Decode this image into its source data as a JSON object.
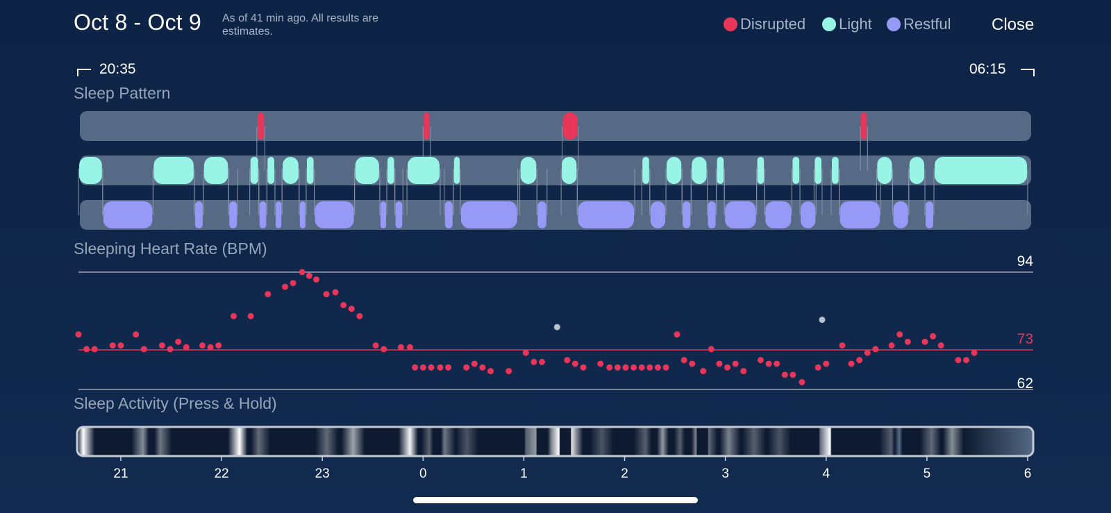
{
  "header": {
    "date_range": "Oct 8 - Oct 9",
    "as_of": "As of 41 min ago. All results are estimates.",
    "close_label": "Close"
  },
  "legend": [
    {
      "label": "Disrupted",
      "color": "#e8365a"
    },
    {
      "label": "Light",
      "color": "#98f5e6"
    },
    {
      "label": "Restful",
      "color": "#9699f5"
    }
  ],
  "time_range": {
    "start": "20:35",
    "end": "06:15"
  },
  "sections": {
    "sleep_pattern": "Sleep Pattern",
    "heart_rate": "Sleeping Heart Rate (BPM)",
    "activity": "Sleep Activity (Press & Hold)"
  },
  "heart_rate": {
    "max": "94",
    "avg": "73",
    "min": "62"
  },
  "colors": {
    "background": "#10264a",
    "track": "#566a85",
    "disrupted": "#e8365a",
    "light": "#98f5e6",
    "restful": "#9699f5",
    "heart_point": "#e8365a",
    "outlier_point": "#b9c0c9",
    "avg_line": "#e8365a",
    "ref_line": "#9aa4b4"
  },
  "icons": {
    "range_start": "bracket-start-icon",
    "range_end": "bracket-end-icon"
  },
  "chart_data": {
    "type": "scatter",
    "title": "Sleeping Heart Rate (BPM)",
    "xlabel": "",
    "ylabel": "",
    "x_ticks": [
      "21",
      "22",
      "23",
      "0",
      "1",
      "2",
      "3",
      "4",
      "5",
      "6"
    ],
    "x_range": [
      20.58,
      30.0
    ],
    "ylim": [
      62,
      94
    ],
    "reference_lines": [
      {
        "label": "94",
        "value": 94
      },
      {
        "label": "73",
        "value": 73
      },
      {
        "label": "62",
        "value": 62
      }
    ],
    "series": [
      {
        "points": [
          [
            20.58,
            77
          ],
          [
            20.66,
            73
          ],
          [
            20.74,
            73
          ],
          [
            20.92,
            74
          ],
          [
            21.0,
            74
          ],
          [
            21.15,
            77
          ],
          [
            21.23,
            73
          ],
          [
            21.41,
            74
          ],
          [
            21.49,
            73
          ],
          [
            21.57,
            75
          ],
          [
            21.65,
            73.5
          ],
          [
            21.81,
            74
          ],
          [
            21.89,
            73.5
          ],
          [
            21.97,
            74
          ],
          [
            22.12,
            82
          ],
          [
            22.29,
            82
          ],
          [
            22.46,
            88
          ],
          [
            22.63,
            90
          ],
          [
            22.71,
            91
          ],
          [
            22.8,
            94
          ],
          [
            22.87,
            93
          ],
          [
            22.94,
            92
          ],
          [
            23.04,
            88
          ],
          [
            23.13,
            88.5
          ],
          [
            23.21,
            85
          ],
          [
            23.29,
            84
          ],
          [
            23.37,
            82
          ],
          [
            23.53,
            74
          ],
          [
            23.61,
            73
          ],
          [
            23.78,
            73.5
          ],
          [
            23.87,
            73.5
          ],
          [
            23.92,
            68
          ],
          [
            24.0,
            68
          ],
          [
            24.08,
            68
          ],
          [
            24.17,
            68
          ],
          [
            24.25,
            68
          ],
          [
            24.43,
            68
          ],
          [
            24.51,
            69
          ],
          [
            24.59,
            68
          ],
          [
            24.67,
            67
          ],
          [
            24.85,
            67
          ],
          [
            25.02,
            72
          ],
          [
            25.1,
            69.5
          ],
          [
            25.18,
            69.5
          ],
          [
            25.43,
            70
          ],
          [
            25.51,
            69
          ],
          [
            25.59,
            68
          ],
          [
            25.76,
            69
          ],
          [
            25.85,
            68
          ],
          [
            25.93,
            68
          ],
          [
            26.01,
            68
          ],
          [
            26.09,
            68
          ],
          [
            26.17,
            68
          ],
          [
            26.25,
            68
          ],
          [
            26.33,
            68
          ],
          [
            26.41,
            68
          ],
          [
            26.52,
            77
          ],
          [
            26.59,
            70
          ],
          [
            26.67,
            69
          ],
          [
            26.78,
            67
          ],
          [
            26.86,
            73
          ],
          [
            26.94,
            69
          ],
          [
            27.02,
            68
          ],
          [
            27.1,
            69
          ],
          [
            27.18,
            67
          ],
          [
            27.35,
            70
          ],
          [
            27.43,
            69
          ],
          [
            27.51,
            69
          ],
          [
            27.59,
            66
          ],
          [
            27.67,
            66
          ],
          [
            27.76,
            64
          ],
          [
            27.92,
            68
          ],
          [
            28.0,
            69
          ],
          [
            28.16,
            74
          ],
          [
            28.25,
            69
          ],
          [
            28.33,
            70
          ],
          [
            28.41,
            72
          ],
          [
            28.49,
            73
          ],
          [
            28.65,
            74
          ],
          [
            28.73,
            77
          ],
          [
            28.81,
            75
          ],
          [
            28.98,
            75
          ],
          [
            29.06,
            76.5
          ],
          [
            29.14,
            74
          ],
          [
            29.31,
            70
          ],
          [
            29.39,
            70
          ],
          [
            29.47,
            72
          ]
        ]
      },
      {
        "points": [
          [
            25.33,
            79
          ],
          [
            27.96,
            81
          ]
        ]
      }
    ]
  },
  "sleep_pattern": {
    "x_range": [
      20.58,
      30.0
    ],
    "disrupted": [
      [
        22.35,
        22.43
      ],
      [
        24.0,
        24.07
      ],
      [
        25.38,
        25.54
      ],
      [
        28.34,
        28.41
      ]
    ],
    "light": [
      [
        20.58,
        20.82
      ],
      [
        21.32,
        21.73
      ],
      [
        21.82,
        22.07
      ],
      [
        22.28,
        22.37
      ],
      [
        22.45,
        22.53
      ],
      [
        22.6,
        22.77
      ],
      [
        22.84,
        22.92
      ],
      [
        23.32,
        23.57
      ],
      [
        23.64,
        23.72
      ],
      [
        23.84,
        24.17
      ],
      [
        24.3,
        24.37
      ],
      [
        24.96,
        25.13
      ],
      [
        25.37,
        25.53
      ],
      [
        26.17,
        26.25
      ],
      [
        26.41,
        26.57
      ],
      [
        26.66,
        26.82
      ],
      [
        26.91,
        26.99
      ],
      [
        27.31,
        27.39
      ],
      [
        27.66,
        27.74
      ],
      [
        27.88,
        27.96
      ],
      [
        28.05,
        28.13
      ],
      [
        28.5,
        28.66
      ],
      [
        28.82,
        28.98
      ],
      [
        29.07,
        30.0
      ]
    ],
    "restful": [
      [
        20.82,
        21.32
      ],
      [
        21.73,
        21.82
      ],
      [
        22.07,
        22.16
      ],
      [
        22.37,
        22.45
      ],
      [
        22.53,
        22.6
      ],
      [
        22.77,
        22.84
      ],
      [
        22.92,
        23.32
      ],
      [
        23.57,
        23.64
      ],
      [
        23.72,
        23.8
      ],
      [
        24.21,
        24.3
      ],
      [
        24.37,
        24.94
      ],
      [
        25.13,
        25.23
      ],
      [
        25.53,
        26.1
      ],
      [
        26.25,
        26.41
      ],
      [
        26.57,
        26.66
      ],
      [
        26.82,
        26.91
      ],
      [
        26.99,
        27.31
      ],
      [
        27.39,
        27.66
      ],
      [
        27.74,
        27.9
      ],
      [
        28.13,
        28.54
      ],
      [
        28.66,
        28.82
      ],
      [
        28.98,
        29.07
      ]
    ]
  },
  "sleep_activity": {
    "x_range": [
      20.58,
      30.0
    ],
    "bright_spots": [
      [
        20.64,
        1.0
      ],
      [
        21.23,
        0.5
      ],
      [
        21.4,
        0.4
      ],
      [
        22.18,
        1.0
      ],
      [
        22.37,
        0.35
      ],
      [
        23.04,
        0.35
      ],
      [
        23.3,
        0.6
      ],
      [
        23.86,
        0.95
      ],
      [
        24.05,
        0.3
      ],
      [
        24.2,
        0.4
      ],
      [
        24.42,
        0.25
      ],
      [
        25.0,
        0.3
      ],
      [
        25.1,
        0.55
      ],
      [
        25.25,
        0.45
      ],
      [
        25.33,
        1.0
      ],
      [
        25.45,
        0.9
      ],
      [
        25.75,
        0.25
      ],
      [
        26.18,
        0.3
      ],
      [
        26.35,
        0.55
      ],
      [
        26.52,
        0.3
      ],
      [
        26.68,
        0.5
      ],
      [
        26.8,
        0.35
      ],
      [
        27.0,
        0.45
      ],
      [
        27.25,
        0.3
      ],
      [
        27.5,
        0.25
      ],
      [
        27.9,
        0.35
      ],
      [
        28.0,
        1.0
      ],
      [
        28.6,
        0.3
      ],
      [
        29.0,
        0.35
      ],
      [
        29.2,
        0.5
      ]
    ]
  }
}
